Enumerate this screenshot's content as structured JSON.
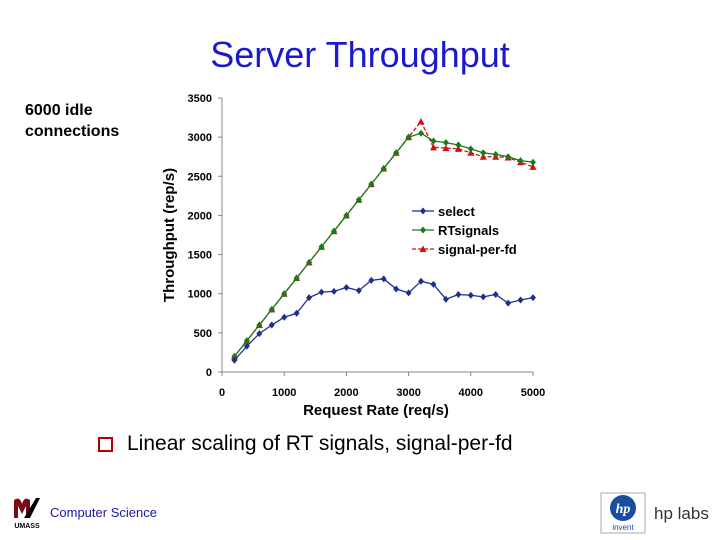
{
  "slide": {
    "title": "Server Throughput",
    "note": "6000 idle\nconnections",
    "bullet": "Linear scaling of RT signals, signal-per-fd",
    "footer_text": "Computer Science",
    "umass_logo_text": "UMASS",
    "hp_logo_text": "hp labs",
    "hp_invent_text": "invent"
  },
  "colors": {
    "title": "#1a1acc",
    "select": "#1f2f8f",
    "rtsignals": "#1a7a1a",
    "signal_per_fd": "#d01010",
    "bullet": "#b00000"
  },
  "chart_data": {
    "type": "line",
    "xlabel": "Request Rate (req/s)",
    "ylabel": "Throughput (rep/s)",
    "xlim": [
      0,
      5000
    ],
    "ylim": [
      0,
      3500
    ],
    "xticks": [
      0,
      1000,
      2000,
      3000,
      4000,
      5000
    ],
    "yticks": [
      0,
      500,
      1000,
      1500,
      2000,
      2500,
      3000,
      3500
    ],
    "grid": false,
    "legend_position": "right",
    "series": [
      {
        "name": "select",
        "color": "#1f2f8f",
        "marker": "diamond",
        "x": [
          200,
          400,
          600,
          800,
          1000,
          1200,
          1400,
          1600,
          1800,
          2000,
          2200,
          2400,
          2600,
          2800,
          3000,
          3200,
          3400,
          3600,
          3800,
          4000,
          4200,
          4400,
          4600,
          4800,
          5000
        ],
        "y": [
          150,
          330,
          490,
          600,
          700,
          750,
          950,
          1020,
          1030,
          1080,
          1040,
          1170,
          1190,
          1060,
          1010,
          1160,
          1120,
          930,
          990,
          980,
          960,
          990,
          880,
          920,
          950
        ]
      },
      {
        "name": "RTsignals",
        "color": "#1a7a1a",
        "marker": "diamond",
        "x": [
          200,
          400,
          600,
          800,
          1000,
          1200,
          1400,
          1600,
          1800,
          2000,
          2200,
          2400,
          2600,
          2800,
          3000,
          3200,
          3400,
          3600,
          3800,
          4000,
          4200,
          4400,
          4600,
          4800,
          5000
        ],
        "y": [
          200,
          400,
          600,
          800,
          1000,
          1200,
          1400,
          1600,
          1800,
          2000,
          2200,
          2400,
          2600,
          2800,
          3000,
          3050,
          2950,
          2930,
          2900,
          2850,
          2800,
          2780,
          2750,
          2700,
          2680
        ]
      },
      {
        "name": "signal-per-fd",
        "color": "#d01010",
        "marker": "triangle",
        "x": [
          200,
          400,
          600,
          800,
          1000,
          1200,
          1400,
          1600,
          1800,
          2000,
          2200,
          2400,
          2600,
          2800,
          3000,
          3200,
          3400,
          3600,
          3800,
          4000,
          4200,
          4400,
          4600,
          4800,
          5000
        ],
        "y": [
          200,
          400,
          600,
          800,
          1000,
          1200,
          1400,
          1600,
          1800,
          2000,
          2200,
          2400,
          2600,
          2800,
          3000,
          3200,
          2870,
          2860,
          2850,
          2800,
          2750,
          2750,
          2740,
          2680,
          2620
        ]
      }
    ]
  }
}
